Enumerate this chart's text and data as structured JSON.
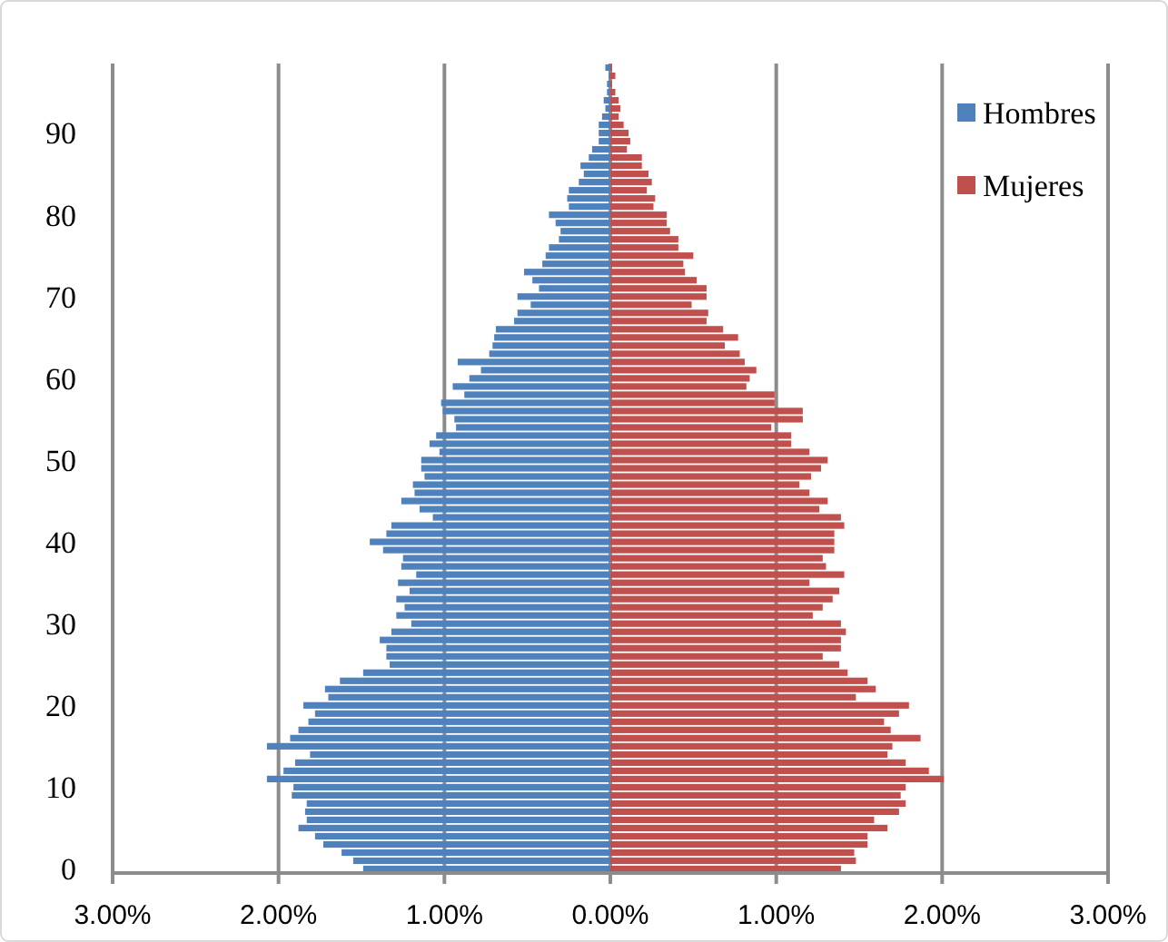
{
  "chart_data": {
    "type": "bar",
    "orientation": "horizontal",
    "categories": [
      null,
      null,
      null,
      null,
      null,
      null,
      null,
      null,
      "90",
      null,
      null,
      null,
      null,
      null,
      null,
      null,
      null,
      null,
      "80",
      null,
      null,
      null,
      null,
      null,
      null,
      null,
      null,
      null,
      "70",
      null,
      null,
      null,
      null,
      null,
      null,
      null,
      null,
      null,
      "60",
      null,
      null,
      null,
      null,
      null,
      null,
      null,
      null,
      null,
      "50",
      null,
      null,
      null,
      null,
      null,
      null,
      null,
      null,
      null,
      "40",
      null,
      null,
      null,
      null,
      null,
      null,
      null,
      null,
      null,
      "30",
      null,
      null,
      null,
      null,
      null,
      null,
      null,
      null,
      null,
      "20",
      null,
      null,
      null,
      null,
      null,
      null,
      null,
      null,
      null,
      "10",
      null,
      null,
      null,
      null,
      null,
      null,
      null,
      null,
      null,
      "0"
    ],
    "series": [
      {
        "name": "Hombres",
        "color": "#4f81bd",
        "values": [
          -0.03,
          -0.01,
          -0.02,
          -0.02,
          -0.04,
          -0.03,
          -0.05,
          -0.07,
          -0.07,
          -0.07,
          -0.11,
          -0.13,
          -0.18,
          -0.16,
          -0.19,
          -0.25,
          -0.26,
          -0.25,
          -0.37,
          -0.33,
          -0.3,
          -0.31,
          -0.37,
          -0.39,
          -0.41,
          -0.52,
          -0.47,
          -0.43,
          -0.56,
          -0.48,
          -0.56,
          -0.58,
          -0.69,
          -0.7,
          -0.71,
          -0.73,
          -0.92,
          -0.78,
          -0.85,
          -0.95,
          -0.88,
          -1.02,
          -1.01,
          -0.94,
          -0.93,
          -1.05,
          -1.09,
          -1.03,
          -1.14,
          -1.14,
          -1.12,
          -1.19,
          -1.18,
          -1.26,
          -1.15,
          -1.07,
          -1.32,
          -1.35,
          -1.45,
          -1.37,
          -1.25,
          -1.26,
          -1.17,
          -1.28,
          -1.21,
          -1.29,
          -1.24,
          -1.29,
          -1.2,
          -1.32,
          -1.39,
          -1.35,
          -1.35,
          -1.33,
          -1.49,
          -1.63,
          -1.72,
          -1.7,
          -1.85,
          -1.78,
          -1.82,
          -1.88,
          -1.93,
          -2.07,
          -1.81,
          -1.9,
          -1.97,
          -2.07,
          -1.91,
          -1.92,
          -1.83,
          -1.84,
          -1.83,
          -1.88,
          -1.78,
          -1.73,
          -1.62,
          -1.55,
          -1.49
        ]
      },
      {
        "name": "Mujeres",
        "color": "#c0504d",
        "values": [
          0.01,
          0.03,
          0.01,
          0.03,
          0.05,
          0.06,
          0.05,
          0.08,
          0.11,
          0.12,
          0.1,
          0.19,
          0.19,
          0.23,
          0.25,
          0.22,
          0.27,
          0.26,
          0.34,
          0.34,
          0.36,
          0.41,
          0.41,
          0.5,
          0.44,
          0.45,
          0.52,
          0.58,
          0.58,
          0.49,
          0.59,
          0.58,
          0.68,
          0.77,
          0.69,
          0.78,
          0.81,
          0.88,
          0.84,
          0.82,
          0.99,
          0.99,
          1.16,
          1.16,
          0.97,
          1.09,
          1.09,
          1.2,
          1.31,
          1.27,
          1.21,
          1.14,
          1.2,
          1.31,
          1.26,
          1.39,
          1.41,
          1.35,
          1.35,
          1.35,
          1.28,
          1.3,
          1.41,
          1.2,
          1.38,
          1.34,
          1.28,
          1.22,
          1.39,
          1.42,
          1.39,
          1.39,
          1.28,
          1.38,
          1.43,
          1.55,
          1.6,
          1.48,
          1.8,
          1.74,
          1.65,
          1.69,
          1.87,
          1.7,
          1.67,
          1.78,
          1.92,
          2.01,
          1.78,
          1.75,
          1.78,
          1.74,
          1.59,
          1.67,
          1.55,
          1.55,
          1.47,
          1.48,
          1.39
        ]
      }
    ],
    "xlim": [
      -3,
      3
    ],
    "xticks": [
      {
        "value": -3,
        "label": "3.00%"
      },
      {
        "value": -2,
        "label": "2.00%"
      },
      {
        "value": -1,
        "label": "1.00%"
      },
      {
        "value": 0,
        "label": "0.00%"
      },
      {
        "value": 1,
        "label": "1.00%"
      },
      {
        "value": 2,
        "label": "2.00%"
      },
      {
        "value": 3,
        "label": "3.00%"
      }
    ],
    "stacked": true,
    "grid": "x",
    "legend": "top right"
  }
}
